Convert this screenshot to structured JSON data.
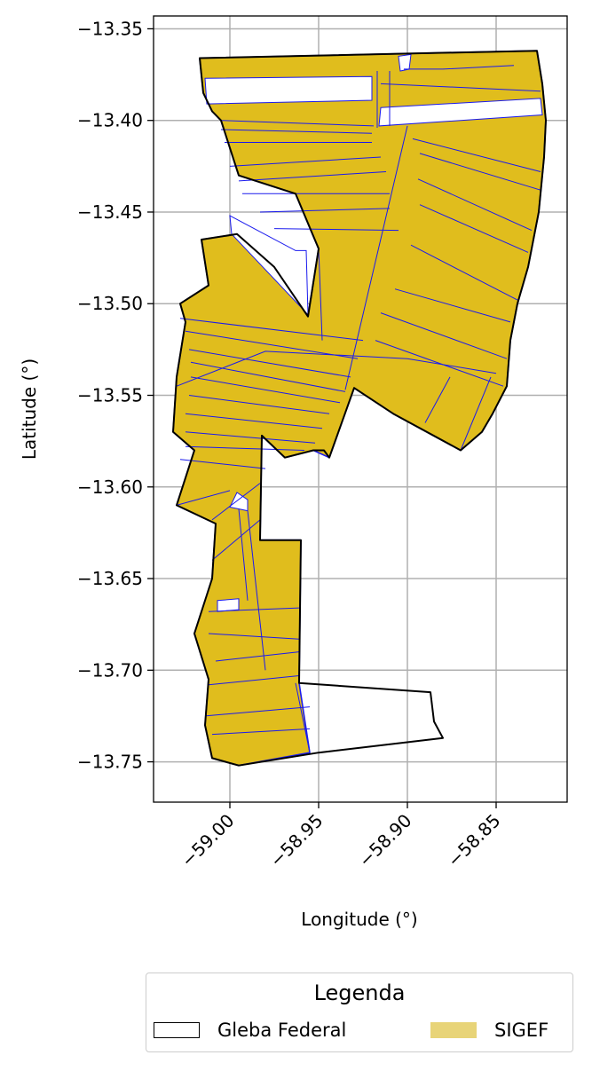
{
  "chart_data": {
    "type": "map",
    "xlabel": "Longitude (°)",
    "ylabel": "Latitude (°)",
    "xlim": [
      -59.043,
      -58.81
    ],
    "ylim": [
      -13.772,
      -13.343
    ],
    "x_ticks": [
      -59.0,
      -58.95,
      -58.9,
      -58.85
    ],
    "x_tick_labels": [
      "−59.00",
      "−58.95",
      "−58.90",
      "−58.85"
    ],
    "y_ticks": [
      -13.35,
      -13.4,
      -13.45,
      -13.5,
      -13.55,
      -13.6,
      -13.65,
      -13.7,
      -13.75
    ],
    "y_tick_labels": [
      "−13.35",
      "−13.40",
      "−13.45",
      "−13.50",
      "−13.55",
      "−13.60",
      "−13.65",
      "−13.70",
      "−13.75"
    ],
    "grid": true,
    "colors": {
      "sigef_fill": "#e0bd1d",
      "sigef_edge": "#1a1aee",
      "gleba_edge": "#000000",
      "grid": "#b0b0b0",
      "legend_swatch": "#e8d478"
    },
    "legend": {
      "title": "Legenda",
      "placement": "below",
      "items": [
        {
          "label": "Gleba Federal",
          "style": "outline"
        },
        {
          "label": "SIGEF",
          "style": "fill"
        }
      ]
    },
    "layers": {
      "gleba_outline": [
        [
          -59.017,
          -13.366
        ],
        [
          -58.827,
          -13.362
        ],
        [
          -58.824,
          -13.38
        ],
        [
          -58.822,
          -13.4
        ],
        [
          -58.823,
          -13.42
        ],
        [
          -58.826,
          -13.45
        ],
        [
          -58.832,
          -13.48
        ],
        [
          -58.838,
          -13.5
        ],
        [
          -58.842,
          -13.52
        ],
        [
          -58.844,
          -13.545
        ],
        [
          -58.852,
          -13.56
        ],
        [
          -58.858,
          -13.57
        ],
        [
          -58.87,
          -13.58
        ],
        [
          -58.908,
          -13.56
        ],
        [
          -58.93,
          -13.546
        ],
        [
          -58.944,
          -13.584
        ],
        [
          -58.947,
          -13.58
        ],
        [
          -58.953,
          -13.58
        ],
        [
          -58.969,
          -13.584
        ],
        [
          -58.982,
          -13.572
        ],
        [
          -58.983,
          -13.629
        ],
        [
          -58.96,
          -13.629
        ],
        [
          -58.961,
          -13.707
        ],
        [
          -58.887,
          -13.712
        ],
        [
          -58.885,
          -13.728
        ],
        [
          -58.88,
          -13.737
        ],
        [
          -58.95,
          -13.745
        ],
        [
          -58.995,
          -13.752
        ],
        [
          -59.01,
          -13.748
        ],
        [
          -59.014,
          -13.73
        ],
        [
          -59.012,
          -13.705
        ],
        [
          -59.02,
          -13.68
        ],
        [
          -59.01,
          -13.65
        ],
        [
          -59.008,
          -13.62
        ],
        [
          -59.03,
          -13.61
        ],
        [
          -59.02,
          -13.58
        ],
        [
          -59.032,
          -13.57
        ],
        [
          -59.03,
          -13.54
        ],
        [
          -59.025,
          -13.51
        ],
        [
          -59.028,
          -13.5
        ],
        [
          -59.012,
          -13.49
        ],
        [
          -59.016,
          -13.465
        ],
        [
          -58.996,
          -13.462
        ],
        [
          -58.975,
          -13.48
        ],
        [
          -58.956,
          -13.507
        ],
        [
          -58.95,
          -13.47
        ],
        [
          -58.963,
          -13.44
        ],
        [
          -58.995,
          -13.43
        ],
        [
          -59.005,
          -13.4
        ],
        [
          -59.01,
          -13.395
        ],
        [
          -59.015,
          -13.385
        ],
        [
          -59.017,
          -13.366
        ]
      ],
      "sigef_parcels": [
        [
          [
            -59.017,
            -13.366
          ],
          [
            -58.827,
            -13.362
          ],
          [
            -58.824,
            -13.38
          ],
          [
            -58.822,
            -13.4
          ],
          [
            -58.823,
            -13.42
          ],
          [
            -58.826,
            -13.45
          ],
          [
            -58.832,
            -13.48
          ],
          [
            -58.838,
            -13.5
          ],
          [
            -58.842,
            -13.52
          ],
          [
            -58.844,
            -13.545
          ],
          [
            -58.852,
            -13.56
          ],
          [
            -58.858,
            -13.57
          ],
          [
            -58.87,
            -13.58
          ],
          [
            -58.908,
            -13.56
          ],
          [
            -58.93,
            -13.546
          ],
          [
            -58.944,
            -13.584
          ],
          [
            -58.953,
            -13.58
          ],
          [
            -58.969,
            -13.584
          ],
          [
            -58.982,
            -13.572
          ],
          [
            -58.983,
            -13.629
          ],
          [
            -58.96,
            -13.629
          ],
          [
            -58.961,
            -13.707
          ],
          [
            -58.955,
            -13.745
          ],
          [
            -58.995,
            -13.752
          ],
          [
            -59.01,
            -13.748
          ],
          [
            -59.014,
            -13.73
          ],
          [
            -59.012,
            -13.705
          ],
          [
            -59.02,
            -13.68
          ],
          [
            -59.01,
            -13.65
          ],
          [
            -59.008,
            -13.62
          ],
          [
            -59.03,
            -13.61
          ],
          [
            -59.02,
            -13.58
          ],
          [
            -59.032,
            -13.57
          ],
          [
            -59.03,
            -13.54
          ],
          [
            -59.025,
            -13.51
          ],
          [
            -59.028,
            -13.5
          ],
          [
            -59.012,
            -13.49
          ],
          [
            -59.016,
            -13.465
          ],
          [
            -58.996,
            -13.462
          ],
          [
            -58.975,
            -13.48
          ],
          [
            -58.956,
            -13.507
          ],
          [
            -58.95,
            -13.47
          ],
          [
            -58.963,
            -13.44
          ],
          [
            -58.995,
            -13.43
          ],
          [
            -59.005,
            -13.4
          ],
          [
            -59.01,
            -13.395
          ],
          [
            -59.015,
            -13.385
          ],
          [
            -59.017,
            -13.366
          ]
        ]
      ],
      "white_gaps": [
        [
          [
            -59.013,
            -13.391
          ],
          [
            -58.92,
            -13.389
          ],
          [
            -58.92,
            -13.376
          ],
          [
            -59.014,
            -13.377
          ]
        ],
        [
          [
            -58.915,
            -13.393
          ],
          [
            -58.825,
            -13.388
          ],
          [
            -58.824,
            -13.397
          ],
          [
            -58.916,
            -13.403
          ]
        ],
        [
          [
            -59.0,
            -13.452
          ],
          [
            -58.963,
            -13.471
          ],
          [
            -58.957,
            -13.471
          ],
          [
            -58.956,
            -13.506
          ],
          [
            -58.999,
            -13.462
          ]
        ],
        [
          [
            -59.007,
            -13.662
          ],
          [
            -58.995,
            -13.661
          ],
          [
            -58.995,
            -13.667
          ],
          [
            -59.007,
            -13.668
          ]
        ],
        [
          [
            -58.996,
            -13.603
          ],
          [
            -58.99,
            -13.607
          ],
          [
            -58.99,
            -13.613
          ],
          [
            -59.0,
            -13.611
          ]
        ],
        [
          [
            -58.905,
            -13.365
          ],
          [
            -58.898,
            -13.364
          ],
          [
            -58.899,
            -13.372
          ],
          [
            -58.904,
            -13.373
          ]
        ]
      ],
      "parcel_lines": [
        [
          [
            -59.005,
            -13.4
          ],
          [
            -58.919,
            -13.403
          ]
        ],
        [
          [
            -59.005,
            -13.405
          ],
          [
            -58.92,
            -13.407
          ]
        ],
        [
          [
            -59.003,
            -13.412
          ],
          [
            -58.92,
            -13.412
          ]
        ],
        [
          [
            -59.0,
            -13.425
          ],
          [
            -58.915,
            -13.42
          ]
        ],
        [
          [
            -58.995,
            -13.433
          ],
          [
            -58.912,
            -13.428
          ]
        ],
        [
          [
            -58.993,
            -13.44
          ],
          [
            -58.91,
            -13.44
          ]
        ],
        [
          [
            -58.983,
            -13.45
          ],
          [
            -58.91,
            -13.448
          ]
        ],
        [
          [
            -58.975,
            -13.459
          ],
          [
            -58.905,
            -13.46
          ]
        ],
        [
          [
            -59.028,
            -13.508
          ],
          [
            -58.925,
            -13.52
          ]
        ],
        [
          [
            -59.025,
            -13.515
          ],
          [
            -58.928,
            -13.53
          ]
        ],
        [
          [
            -59.023,
            -13.525
          ],
          [
            -58.932,
            -13.54
          ]
        ],
        [
          [
            -59.022,
            -13.532
          ],
          [
            -58.935,
            -13.548
          ]
        ],
        [
          [
            -59.022,
            -13.54
          ],
          [
            -58.938,
            -13.554
          ]
        ],
        [
          [
            -59.023,
            -13.55
          ],
          [
            -58.944,
            -13.56
          ]
        ],
        [
          [
            -59.025,
            -13.56
          ],
          [
            -58.948,
            -13.568
          ]
        ],
        [
          [
            -59.025,
            -13.57
          ],
          [
            -58.952,
            -13.576
          ]
        ],
        [
          [
            -59.025,
            -13.578
          ],
          [
            -58.958,
            -13.58
          ]
        ],
        [
          [
            -59.028,
            -13.585
          ],
          [
            -58.98,
            -13.59
          ]
        ],
        [
          [
            -59.03,
            -13.545
          ],
          [
            -58.98,
            -13.526
          ],
          [
            -58.9,
            -13.53
          ],
          [
            -58.85,
            -13.538
          ]
        ],
        [
          [
            -58.9,
            -13.403
          ],
          [
            -58.935,
            -13.547
          ]
        ],
        [
          [
            -58.902,
            -13.372
          ],
          [
            -58.88,
            -13.372
          ],
          [
            -58.84,
            -13.37
          ]
        ],
        [
          [
            -58.915,
            -13.38
          ],
          [
            -58.825,
            -13.384
          ]
        ],
        [
          [
            -58.897,
            -13.41
          ],
          [
            -58.825,
            -13.428
          ]
        ],
        [
          [
            -58.893,
            -13.418
          ],
          [
            -58.825,
            -13.438
          ]
        ],
        [
          [
            -58.894,
            -13.432
          ],
          [
            -58.83,
            -13.46
          ]
        ],
        [
          [
            -58.893,
            -13.446
          ],
          [
            -58.832,
            -13.472
          ]
        ],
        [
          [
            -58.898,
            -13.468
          ],
          [
            -58.838,
            -13.498
          ]
        ],
        [
          [
            -58.907,
            -13.492
          ],
          [
            -58.842,
            -13.51
          ]
        ],
        [
          [
            -58.915,
            -13.505
          ],
          [
            -58.844,
            -13.53
          ]
        ],
        [
          [
            -58.918,
            -13.52
          ],
          [
            -58.846,
            -13.545
          ]
        ],
        [
          [
            -58.87,
            -13.58
          ],
          [
            -58.853,
            -13.54
          ]
        ],
        [
          [
            -58.89,
            -13.565
          ],
          [
            -58.876,
            -13.54
          ]
        ],
        [
          [
            -59.01,
            -13.618
          ],
          [
            -58.983,
            -13.598
          ]
        ],
        [
          [
            -59.03,
            -13.61
          ],
          [
            -59.0,
            -13.602
          ]
        ],
        [
          [
            -59.01,
            -13.64
          ],
          [
            -58.983,
            -13.618
          ]
        ],
        [
          [
            -59.012,
            -13.668
          ],
          [
            -58.961,
            -13.666
          ]
        ],
        [
          [
            -59.012,
            -13.68
          ],
          [
            -58.961,
            -13.683
          ]
        ],
        [
          [
            -59.008,
            -13.695
          ],
          [
            -58.961,
            -13.69
          ]
        ],
        [
          [
            -59.012,
            -13.708
          ],
          [
            -58.961,
            -13.703
          ]
        ],
        [
          [
            -59.014,
            -13.725
          ],
          [
            -58.955,
            -13.72
          ]
        ],
        [
          [
            -59.01,
            -13.735
          ],
          [
            -58.955,
            -13.732
          ]
        ],
        [
          [
            -58.995,
            -13.612
          ],
          [
            -58.99,
            -13.662
          ]
        ],
        [
          [
            -58.99,
            -13.613
          ],
          [
            -58.98,
            -13.7
          ]
        ],
        [
          [
            -58.963,
            -13.707
          ],
          [
            -58.955,
            -13.745
          ]
        ],
        [
          [
            -58.95,
            -13.47
          ],
          [
            -58.948,
            -13.52
          ]
        ],
        [
          [
            -58.917,
            -13.373
          ],
          [
            -58.917,
            -13.404
          ]
        ],
        [
          [
            -58.91,
            -13.373
          ],
          [
            -58.91,
            -13.403
          ]
        ]
      ]
    }
  }
}
